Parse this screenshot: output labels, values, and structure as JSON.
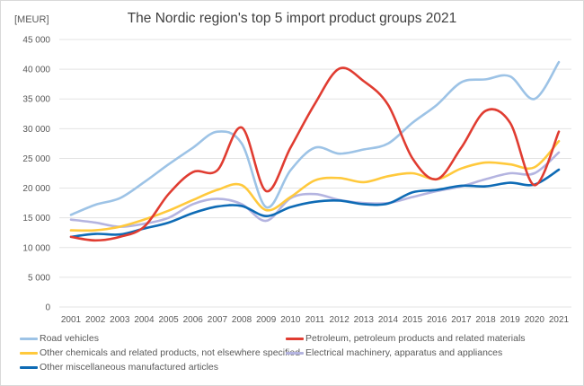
{
  "chart_data": {
    "type": "line",
    "title": "The Nordic region's top 5 import product groups 2021",
    "ylabel": "[MEUR]",
    "xlabel": "",
    "ylim": [
      0,
      45000
    ],
    "yticks": [
      0,
      5000,
      10000,
      15000,
      20000,
      25000,
      30000,
      35000,
      40000,
      45000
    ],
    "ytick_labels": [
      "0",
      "5 000",
      "10 000",
      "15 000",
      "20 000",
      "25 000",
      "30 000",
      "35 000",
      "40 000",
      "45 000"
    ],
    "grid": true,
    "legend_position": "bottom",
    "x": [
      "2001",
      "2002",
      "2003",
      "2004",
      "2005",
      "2006",
      "2007",
      "2008",
      "2009",
      "2010",
      "2011",
      "2012",
      "2013",
      "2014",
      "2015",
      "2016",
      "2017",
      "2018",
      "2019",
      "2020",
      "2021"
    ],
    "series": [
      {
        "name": "Road vehicles",
        "color": "#9DC3E6",
        "values": [
          15500,
          17200,
          18300,
          21000,
          24000,
          26800,
          29500,
          27500,
          16800,
          23000,
          26800,
          25800,
          26500,
          27500,
          31000,
          34000,
          37800,
          38300,
          38800,
          35000,
          41200
        ]
      },
      {
        "name": "Petroleum, petroleum products and related materials",
        "color": "#E03C31",
        "values": [
          11800,
          11200,
          11800,
          13500,
          19000,
          22700,
          23000,
          30200,
          19500,
          26800,
          34200,
          40100,
          38000,
          34000,
          25000,
          21500,
          26800,
          33000,
          31000,
          20500,
          29500
        ]
      },
      {
        "name": "Other chemicals and related products, not elsewhere specified",
        "color": "#FFC93C",
        "values": [
          12900,
          12900,
          13500,
          14700,
          16200,
          18000,
          19700,
          20500,
          16300,
          18500,
          21300,
          21700,
          21000,
          22000,
          22500,
          21500,
          23300,
          24300,
          24000,
          23500,
          27900
        ]
      },
      {
        "name": "Electrical machinery, apparatus and appliances",
        "color": "#B4B4E0",
        "values": [
          14700,
          14200,
          13500,
          14000,
          15000,
          17300,
          18200,
          17300,
          14500,
          18300,
          19000,
          18000,
          17500,
          17500,
          18500,
          19500,
          20300,
          21500,
          22500,
          22500,
          26000
        ]
      },
      {
        "name": "Other miscellaneous manufactured articles",
        "color": "#0E6BB5",
        "values": [
          11800,
          12300,
          12200,
          13200,
          14200,
          15800,
          16900,
          17000,
          15300,
          16800,
          17700,
          17900,
          17300,
          17400,
          19300,
          19700,
          20400,
          20300,
          20900,
          20600,
          23100
        ]
      }
    ]
  }
}
